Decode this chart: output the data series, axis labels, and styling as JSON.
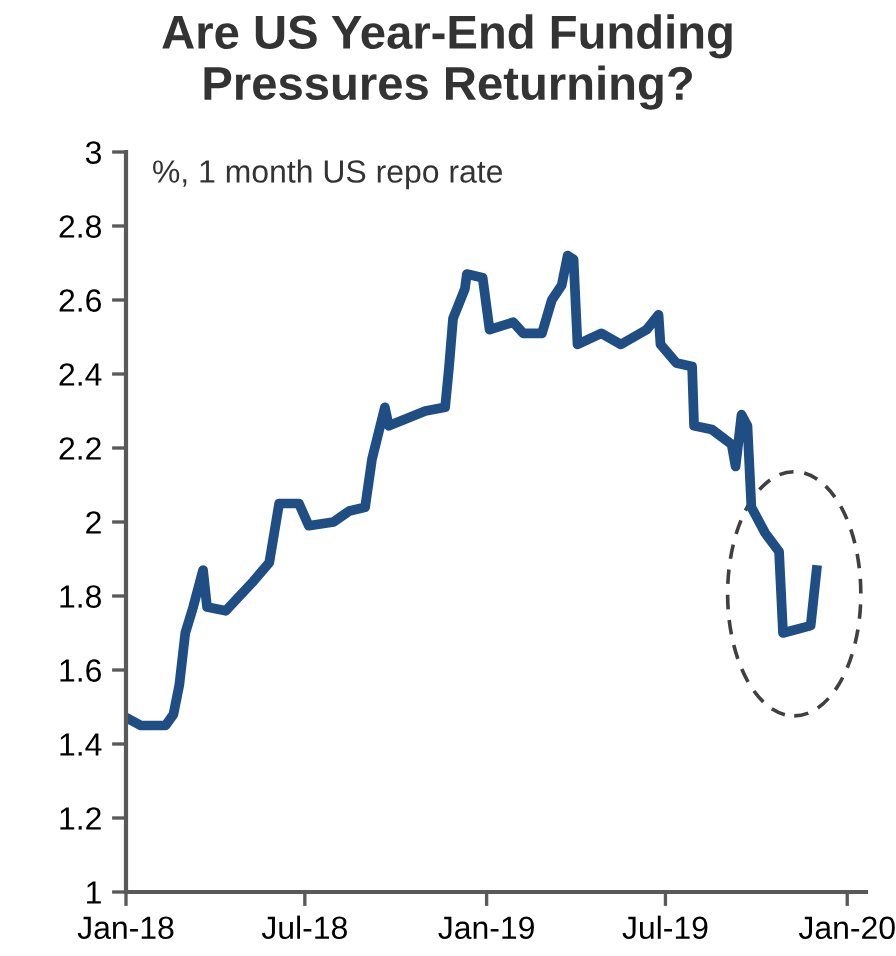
{
  "chart_data": {
    "type": "line",
    "title": "Are US Year-End Funding\nPressures Returning?",
    "subtitle": "%, 1 month US repo rate",
    "x": [
      "2018-01-02",
      "2018-01-16",
      "2018-02-10",
      "2018-02-18",
      "2018-02-24",
      "2018-03-02",
      "2018-03-10",
      "2018-03-20",
      "2018-03-24",
      "2018-04-12",
      "2018-05-10",
      "2018-05-26",
      "2018-06-05",
      "2018-06-25",
      "2018-07-05",
      "2018-07-30",
      "2018-08-15",
      "2018-08-31",
      "2018-09-07",
      "2018-09-20",
      "2018-09-24",
      "2018-10-31",
      "2018-11-20",
      "2018-11-24",
      "2018-11-28",
      "2018-12-10",
      "2018-12-12",
      "2018-12-28",
      "2019-01-04",
      "2019-01-28",
      "2019-02-07",
      "2019-02-26",
      "2019-03-08",
      "2019-03-18",
      "2019-03-24",
      "2019-03-30",
      "2019-04-03",
      "2019-04-27",
      "2019-05-17",
      "2019-06-12",
      "2019-06-24",
      "2019-06-26",
      "2019-07-12",
      "2019-07-28",
      "2019-07-30",
      "2019-08-17",
      "2019-09-06",
      "2019-09-10",
      "2019-09-16",
      "2019-09-22",
      "2019-09-26",
      "2019-10-10",
      "2019-10-24",
      "2019-10-28",
      "2019-11-25",
      "2019-12-01"
    ],
    "series": [
      {
        "color": "#1f4e85",
        "values": [
          1.47,
          1.45,
          1.45,
          1.48,
          1.56,
          1.7,
          1.77,
          1.87,
          1.77,
          1.76,
          1.84,
          1.89,
          2.05,
          2.05,
          1.99,
          2.0,
          2.03,
          2.04,
          2.17,
          2.31,
          2.26,
          2.3,
          2.31,
          2.42,
          2.55,
          2.63,
          2.67,
          2.66,
          2.52,
          2.54,
          2.51,
          2.51,
          2.6,
          2.64,
          2.72,
          2.71,
          2.48,
          2.51,
          2.48,
          2.52,
          2.56,
          2.48,
          2.43,
          2.42,
          2.26,
          2.25,
          2.21,
          2.15,
          2.29,
          2.26,
          2.04,
          1.97,
          1.92,
          1.7,
          1.72,
          1.87
        ]
      }
    ],
    "xlim": [
      "2018-01-01",
      "2020-01-20"
    ],
    "xticks": [
      {
        "value": "2018-01-01",
        "label": "Jan-18"
      },
      {
        "value": "2018-07-01",
        "label": "Jul-18"
      },
      {
        "value": "2019-01-01",
        "label": "Jan-19"
      },
      {
        "value": "2019-07-01",
        "label": "Jul-19"
      },
      {
        "value": "2020-01-01",
        "label": "Jan-20"
      }
    ],
    "ylim": [
      1,
      3
    ],
    "yticks": [
      1,
      1.2,
      1.4,
      1.6,
      1.8,
      2,
      2.2,
      2.4,
      2.6,
      2.8,
      3
    ],
    "grid": false,
    "legend": false,
    "line_style": "solid",
    "marker": "none"
  }
}
